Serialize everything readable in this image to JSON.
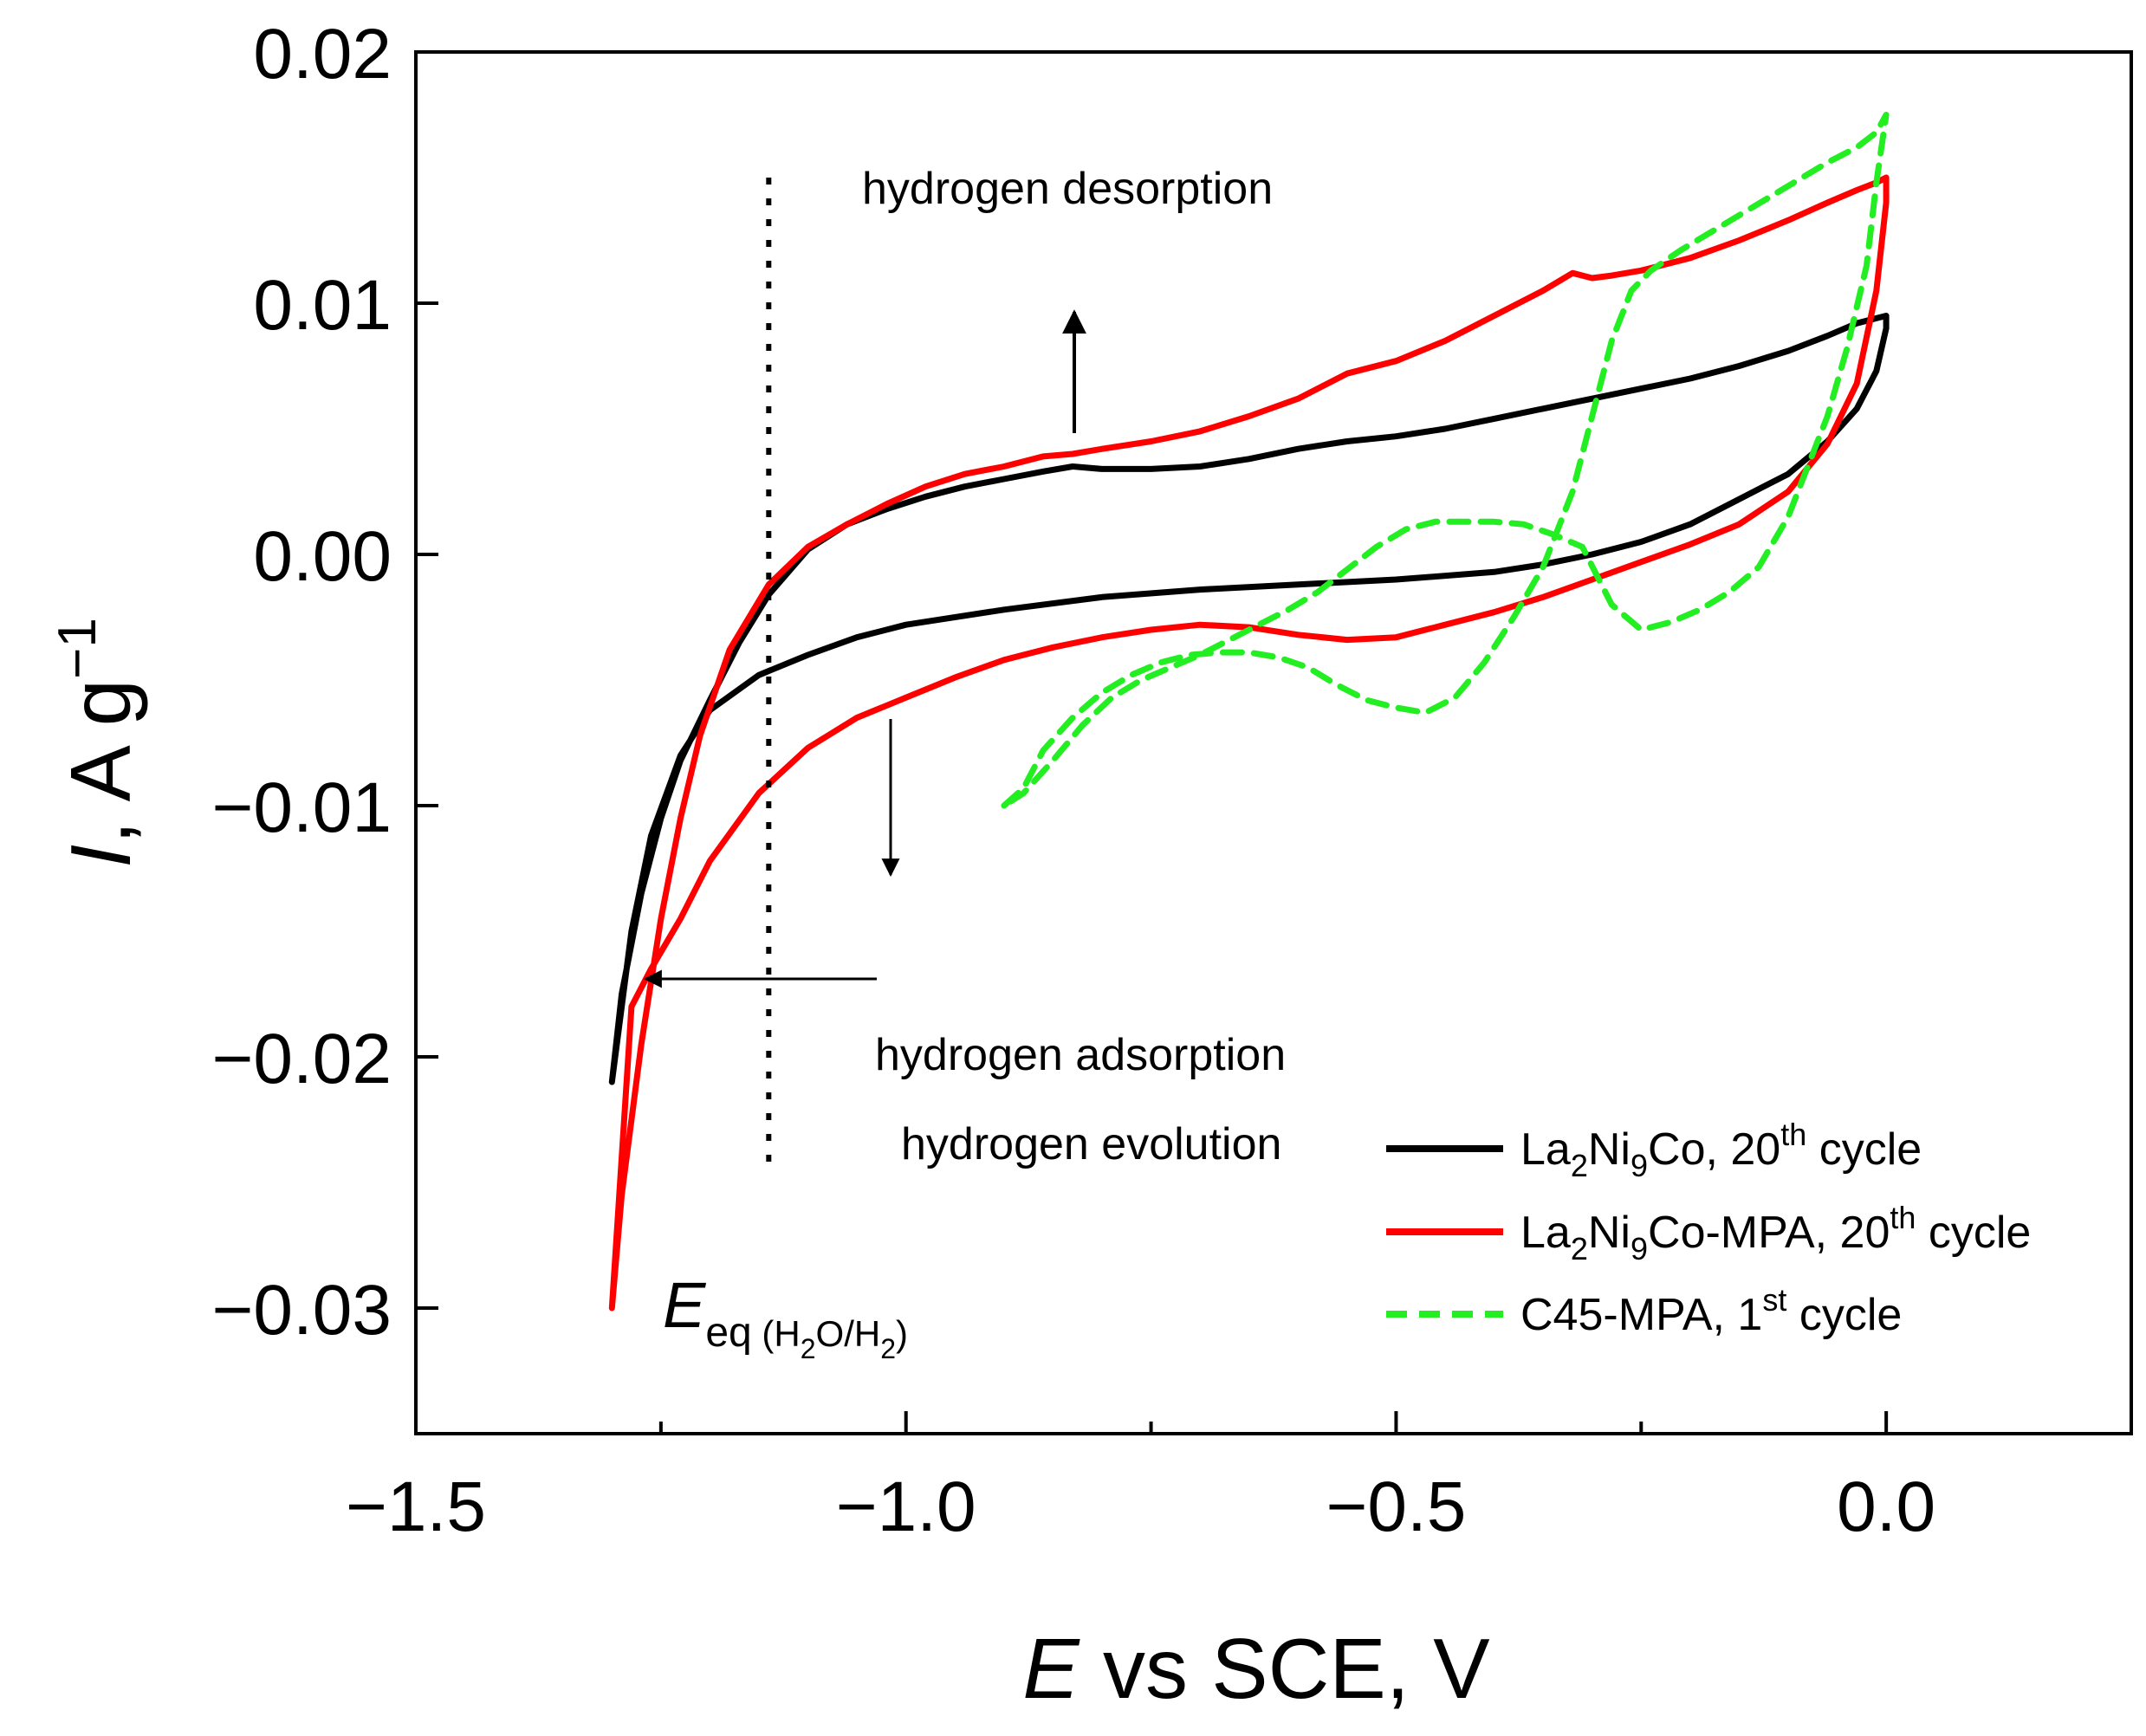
{
  "chart_data": {
    "type": "line",
    "xlabel": {
      "italic": "E",
      "rest": " vs SCE, V"
    },
    "ylabel": {
      "italic": "I",
      "rest": ", A g",
      "sup": "−1"
    },
    "xlim": [
      -1.5,
      0.25
    ],
    "ylim": [
      -0.035,
      0.02
    ],
    "x_ticks": [
      -1.5,
      -1.0,
      -0.5,
      0.0
    ],
    "x_tick_labels": [
      "−1.5",
      "−1.0",
      "−0.5",
      "0.0"
    ],
    "y_ticks": [
      -0.03,
      -0.02,
      -0.01,
      0.0,
      0.01,
      0.02
    ],
    "y_tick_labels": [
      "−0.03",
      "−0.02",
      "−0.01",
      "0.00",
      "0.01",
      "0.02"
    ],
    "grid": false,
    "legend_position": "bottom-right",
    "series": [
      {
        "name": {
          "a": "La",
          "s1": "2",
          "b": "Ni",
          "s2": "9",
          "c": "Co, 20",
          "sup": "th",
          "d": " cycle"
        },
        "color": "#000000",
        "dash": "solid",
        "x": [
          -1.3,
          -1.29,
          -1.27,
          -1.25,
          -1.23,
          -1.2,
          -1.17,
          -1.14,
          -1.1,
          -1.06,
          -1.02,
          -0.98,
          -0.94,
          -0.9,
          -0.86,
          -0.83,
          -0.8,
          -0.75,
          -0.7,
          -0.65,
          -0.6,
          -0.55,
          -0.5,
          -0.45,
          -0.4,
          -0.35,
          -0.3,
          -0.25,
          -0.2,
          -0.15,
          -0.1,
          -0.06,
          -0.03,
          -0.01,
          0.0,
          0.0,
          -0.01,
          -0.03,
          -0.06,
          -0.1,
          -0.15,
          -0.2,
          -0.25,
          -0.3,
          -0.35,
          -0.4,
          -0.5,
          -0.6,
          -0.7,
          -0.8,
          -0.9,
          -1.0,
          -1.05,
          -1.1,
          -1.15,
          -1.2,
          -1.23,
          -1.26,
          -1.28,
          -1.3
        ],
        "y": [
          -0.021,
          -0.0175,
          -0.0135,
          -0.0105,
          -0.0082,
          -0.0058,
          -0.0035,
          -0.0016,
          0.0002,
          0.0012,
          0.0018,
          0.0023,
          0.0027,
          0.003,
          0.0033,
          0.0035,
          0.0034,
          0.0034,
          0.0035,
          0.0038,
          0.0042,
          0.0045,
          0.0047,
          0.005,
          0.0054,
          0.0058,
          0.0062,
          0.0066,
          0.007,
          0.0075,
          0.0081,
          0.0087,
          0.0092,
          0.0094,
          0.0095,
          0.009,
          0.0073,
          0.0058,
          0.0045,
          0.0032,
          0.0022,
          0.0012,
          0.0005,
          0.0,
          -0.0004,
          -0.0007,
          -0.001,
          -0.0012,
          -0.0014,
          -0.0017,
          -0.0022,
          -0.0028,
          -0.0033,
          -0.004,
          -0.0048,
          -0.0062,
          -0.008,
          -0.0112,
          -0.015,
          -0.021
        ]
      },
      {
        "name": {
          "a": "La",
          "s1": "2",
          "b": "Ni",
          "s2": "9",
          "c": "Co-MPA, 20",
          "sup": "th",
          "d": " cycle"
        },
        "color": "#ff0000",
        "dash": "solid",
        "x": [
          -1.3,
          -1.29,
          -1.27,
          -1.25,
          -1.23,
          -1.21,
          -1.18,
          -1.14,
          -1.1,
          -1.06,
          -1.02,
          -0.98,
          -0.94,
          -0.9,
          -0.86,
          -0.83,
          -0.8,
          -0.75,
          -0.7,
          -0.65,
          -0.6,
          -0.55,
          -0.5,
          -0.45,
          -0.4,
          -0.35,
          -0.32,
          -0.3,
          -0.28,
          -0.25,
          -0.2,
          -0.15,
          -0.1,
          -0.06,
          -0.03,
          -0.01,
          0.0,
          0.0,
          -0.01,
          -0.03,
          -0.06,
          -0.1,
          -0.15,
          -0.2,
          -0.25,
          -0.3,
          -0.35,
          -0.4,
          -0.45,
          -0.5,
          -0.55,
          -0.6,
          -0.65,
          -0.7,
          -0.75,
          -0.8,
          -0.85,
          -0.9,
          -0.95,
          -1.0,
          -1.05,
          -1.1,
          -1.15,
          -1.2,
          -1.23,
          -1.26,
          -1.28,
          -1.3
        ],
        "y": [
          -0.03,
          -0.0255,
          -0.0195,
          -0.0145,
          -0.0105,
          -0.0072,
          -0.0038,
          -0.0012,
          0.0003,
          0.0012,
          0.002,
          0.0027,
          0.0032,
          0.0035,
          0.0039,
          0.004,
          0.0042,
          0.0045,
          0.0049,
          0.0055,
          0.0062,
          0.0072,
          0.0077,
          0.0085,
          0.0095,
          0.0105,
          0.0112,
          0.011,
          0.0111,
          0.0113,
          0.0118,
          0.0125,
          0.0133,
          0.014,
          0.0145,
          0.0148,
          0.015,
          0.014,
          0.0105,
          0.0068,
          0.0044,
          0.0025,
          0.0012,
          0.0004,
          -0.0003,
          -0.001,
          -0.0017,
          -0.0023,
          -0.0028,
          -0.0033,
          -0.0034,
          -0.0032,
          -0.0029,
          -0.0028,
          -0.003,
          -0.0033,
          -0.0037,
          -0.0042,
          -0.0049,
          -0.0057,
          -0.0065,
          -0.0077,
          -0.0095,
          -0.0122,
          -0.0145,
          -0.0165,
          -0.018,
          -0.03
        ]
      },
      {
        "name": {
          "a": "C45-MPA, 1",
          "sup": "st",
          "d": " cycle"
        },
        "color": "#22ee22",
        "dash": "dashed",
        "x": [
          -0.9,
          -0.88,
          -0.86,
          -0.83,
          -0.8,
          -0.77,
          -0.74,
          -0.71,
          -0.68,
          -0.65,
          -0.62,
          -0.59,
          -0.56,
          -0.53,
          -0.5,
          -0.47,
          -0.44,
          -0.41,
          -0.38,
          -0.35,
          -0.32,
          -0.3,
          -0.28,
          -0.26,
          -0.24,
          -0.21,
          -0.18,
          -0.15,
          -0.12,
          -0.09,
          -0.06,
          -0.03,
          -0.01,
          0.0,
          -0.01,
          -0.02,
          -0.04,
          -0.06,
          -0.08,
          -0.1,
          -0.13,
          -0.16,
          -0.19,
          -0.22,
          -0.25,
          -0.28,
          -0.31,
          -0.34,
          -0.37,
          -0.4,
          -0.43,
          -0.46,
          -0.49,
          -0.52,
          -0.55,
          -0.58,
          -0.61,
          -0.64,
          -0.67,
          -0.7,
          -0.73,
          -0.76,
          -0.79,
          -0.82,
          -0.85,
          -0.88,
          -0.9
        ],
        "y": [
          -0.01,
          -0.0093,
          -0.0078,
          -0.0065,
          -0.0055,
          -0.0048,
          -0.0043,
          -0.004,
          -0.0039,
          -0.0039,
          -0.0041,
          -0.0045,
          -0.0052,
          -0.0058,
          -0.0061,
          -0.0063,
          -0.0057,
          -0.0043,
          -0.0025,
          -0.0005,
          0.0025,
          0.0055,
          0.0085,
          0.0105,
          0.0113,
          0.0121,
          0.0128,
          0.0135,
          0.0142,
          0.0149,
          0.0156,
          0.0162,
          0.0168,
          0.0175,
          0.0148,
          0.0115,
          0.0082,
          0.0055,
          0.0035,
          0.0015,
          -0.0005,
          -0.0015,
          -0.0022,
          -0.0027,
          -0.003,
          -0.002,
          0.0003,
          0.0008,
          0.0012,
          0.0013,
          0.0013,
          0.0013,
          0.001,
          0.0003,
          -0.0006,
          -0.0015,
          -0.0022,
          -0.0028,
          -0.0034,
          -0.004,
          -0.0045,
          -0.005,
          -0.0057,
          -0.0068,
          -0.0082,
          -0.0095,
          -0.01
        ]
      }
    ],
    "annotations": {
      "desorption": "hydrogen desorption",
      "adsorption": "hydrogen adsorption",
      "evolution": "hydrogen evolution",
      "eeq": {
        "italic": "E",
        "sub": "eq",
        "paren_open": " (H",
        "s1": "2",
        "mid": "O/H",
        "s2": "2",
        "paren_close": ")"
      },
      "eeq_line_x": -1.14
    }
  }
}
